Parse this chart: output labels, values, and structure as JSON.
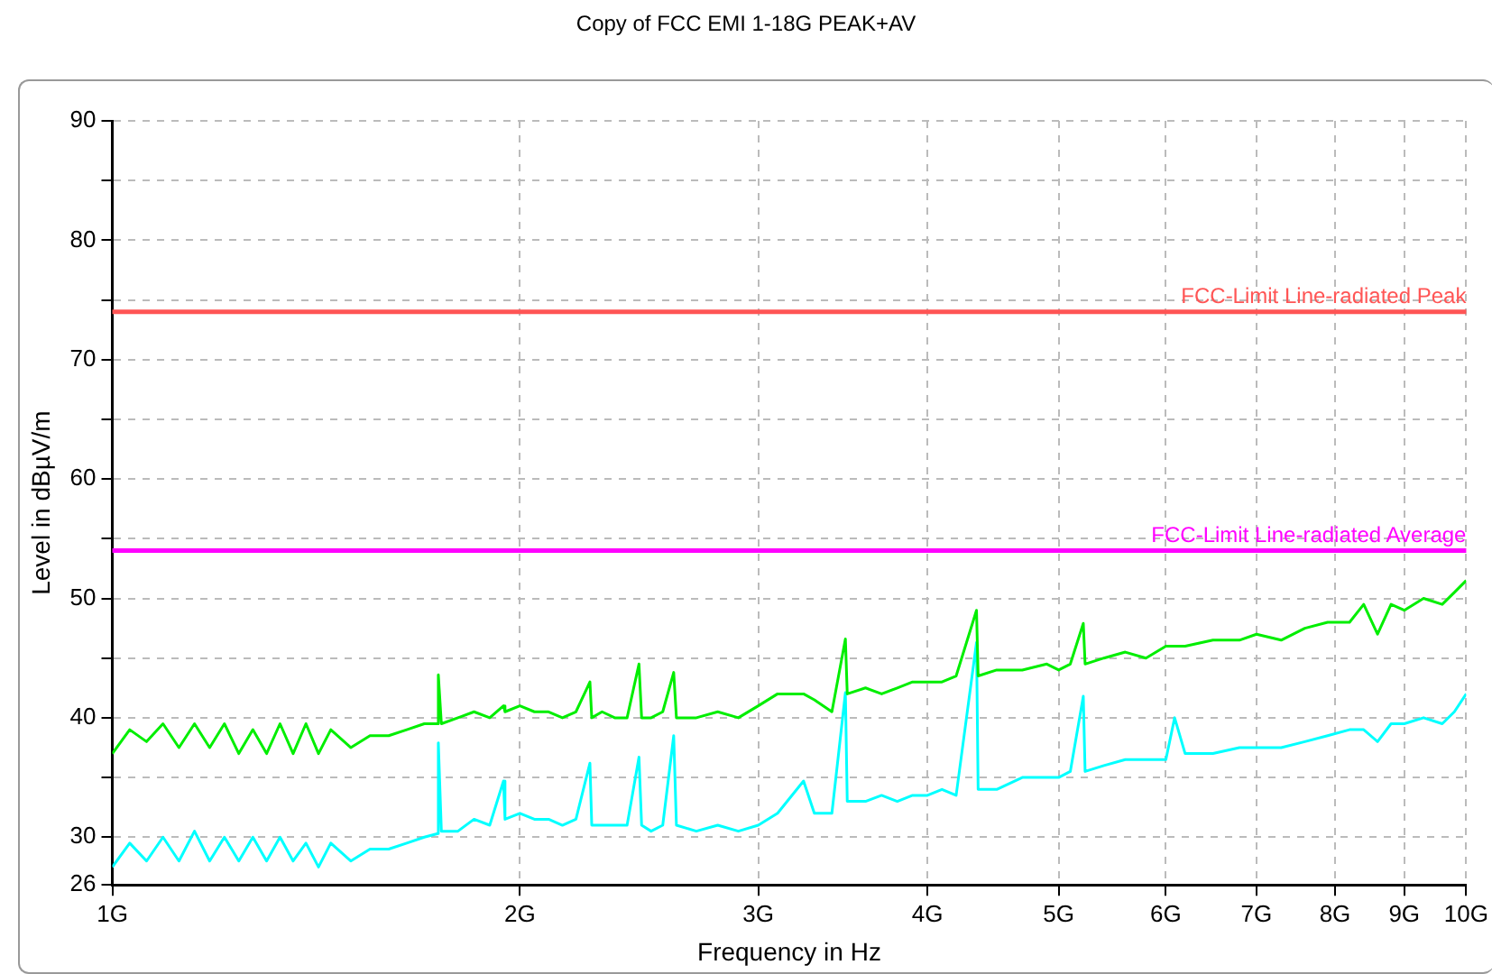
{
  "chart_data": {
    "type": "line",
    "title": "Copy of FCC EMI 1-18G PEAK+AV",
    "xlabel": "Frequency in Hz",
    "ylabel": "Level in dBµV/m",
    "log": "x",
    "grid": true,
    "legend": false,
    "marker": "none",
    "line_style": "solid",
    "xlim": [
      1,
      10
    ],
    "xticks": [
      {
        "value": 1,
        "label": "1G"
      },
      {
        "value": 2,
        "label": "2G"
      },
      {
        "value": 3,
        "label": "3G"
      },
      {
        "value": 4,
        "label": "4G"
      },
      {
        "value": 5,
        "label": "5G"
      },
      {
        "value": 6,
        "label": "6G"
      },
      {
        "value": 7,
        "label": "7G"
      },
      {
        "value": 8,
        "label": "8G"
      },
      {
        "value": 9,
        "label": "9G"
      },
      {
        "value": 10,
        "label": "10G"
      }
    ],
    "ylim": [
      26,
      90
    ],
    "yticks": [
      26,
      30,
      {
        "value": 35,
        "label": null
      },
      40,
      {
        "value": 45,
        "label": null
      },
      50,
      {
        "value": 55,
        "label": null
      },
      60,
      {
        "value": 65,
        "label": null
      },
      70,
      {
        "value": 75,
        "label": null
      },
      80,
      {
        "value": 85,
        "label": null
      },
      90
    ],
    "x": [
      1.0,
      1.03,
      1.06,
      1.09,
      1.12,
      1.15,
      1.18,
      1.21,
      1.24,
      1.27,
      1.3,
      1.33,
      1.36,
      1.39,
      1.42,
      1.45,
      1.5,
      1.55,
      1.6,
      1.65,
      1.7,
      1.74,
      1.741,
      1.75,
      1.8,
      1.85,
      1.9,
      1.945,
      1.95,
      2.0,
      2.05,
      2.1,
      2.15,
      2.2,
      2.253,
      2.26,
      2.3,
      2.35,
      2.4,
      2.449,
      2.46,
      2.5,
      2.55,
      2.598,
      2.61,
      2.7,
      2.8,
      2.9,
      3.0,
      3.1,
      3.24,
      3.3,
      3.4,
      3.479,
      3.49,
      3.6,
      3.7,
      3.8,
      3.9,
      4.0,
      4.1,
      4.2,
      4.348,
      4.36,
      4.5,
      4.7,
      4.9,
      5.0,
      5.1,
      5.214,
      5.23,
      5.4,
      5.6,
      5.8,
      6.0,
      6.09,
      6.2,
      6.5,
      6.8,
      7.0,
      7.3,
      7.6,
      7.9,
      8.2,
      8.4,
      8.6,
      8.8,
      9.0,
      9.3,
      9.6,
      9.8,
      10.0
    ],
    "series": [
      {
        "color": "#00ee00",
        "values": [
          37,
          39,
          38,
          39.5,
          37.5,
          39.5,
          37.5,
          39.5,
          37,
          39,
          37,
          39.5,
          37,
          39.5,
          37,
          39,
          37.5,
          38.5,
          38.5,
          39,
          39.5,
          39.5,
          43.6,
          39.5,
          40,
          40.5,
          40,
          41,
          40.5,
          41,
          40.5,
          40.5,
          40,
          40.5,
          43,
          40,
          40.5,
          40,
          40,
          44.5,
          40,
          40,
          40.5,
          43.8,
          40,
          40,
          40.5,
          40,
          41,
          42,
          42,
          41.5,
          40.5,
          46.6,
          42,
          42.5,
          42,
          42.5,
          43,
          43,
          43,
          43.5,
          49,
          43.5,
          44,
          44,
          44.5,
          44,
          44.5,
          47.9,
          44.5,
          45,
          45.5,
          45,
          46,
          46,
          46,
          46.5,
          46.5,
          47,
          46.5,
          47.5,
          48,
          48,
          49.5,
          47,
          49.5,
          49,
          50,
          49.5,
          50.5,
          51.5
        ]
      },
      {
        "color": "#00ffff",
        "values": [
          27.5,
          29.5,
          28,
          30,
          28,
          30.5,
          28,
          30,
          28,
          30,
          28,
          30,
          28,
          29.5,
          27.5,
          29.5,
          28,
          29,
          29,
          29.5,
          30,
          30.3,
          37.9,
          30.5,
          30.5,
          31.5,
          31,
          34.7,
          31.5,
          32,
          31.5,
          31.5,
          31,
          31.5,
          36.2,
          31,
          31,
          31,
          31,
          36.7,
          31,
          30.5,
          31,
          38.5,
          31,
          30.5,
          31,
          30.5,
          31,
          32,
          34.7,
          32,
          32,
          42.1,
          33,
          33,
          33.5,
          33,
          33.5,
          33.5,
          34,
          33.5,
          46.3,
          34,
          34,
          35,
          35,
          35,
          35.5,
          41.8,
          35.5,
          36,
          36.5,
          36.5,
          36.5,
          40,
          37,
          37,
          37.5,
          37.5,
          37.5,
          38,
          38.5,
          39,
          39,
          38,
          39.5,
          39.5,
          40,
          39.5,
          40.5,
          42
        ]
      }
    ],
    "ref_lines": [
      {
        "axis": "y",
        "value": 74,
        "label": "FCC-Limit Line-radiated Peak",
        "color": "#ff5555"
      },
      {
        "axis": "y",
        "value": 54,
        "label": "FCC-Limit Line-radiated Average",
        "color": "#ff00ff"
      }
    ]
  }
}
